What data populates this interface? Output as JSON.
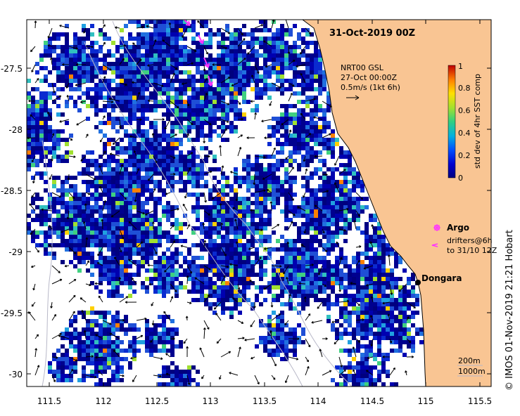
{
  "map": {
    "title": "31-Oct-2019 00Z",
    "credit": "© IMOS 01-Nov-2019 21:21 Hobart",
    "lon_ticks": [
      "111.5",
      "112",
      "112.5",
      "113",
      "113.5",
      "114",
      "114.5",
      "115",
      "115.5"
    ],
    "lat_ticks": [
      "-27.5",
      "-28",
      "-28.5",
      "-29",
      "-29.5",
      "-30"
    ],
    "current_legend": {
      "line1": "NRT00 GSL",
      "line2": "27-Oct 00:00Z",
      "line3": "0.5m/s (1kt 6h)"
    },
    "colorbar": {
      "label": "std dev of 4hr SST comp",
      "ticks": [
        "0",
        "0.2",
        "0.4",
        "0.6",
        "0.8",
        "1"
      ]
    },
    "argo_legend": {
      "label": "Argo",
      "drifter_line1": "drifters@6h",
      "drifter_line2": "to 31/10 12Z"
    },
    "place_label": "Dongara",
    "depth_labels": [
      "200m",
      "1000m"
    ],
    "colors": {
      "land": "#f9c593",
      "argo": "#ff33ff",
      "ocean_pixel_dark": "#00008f",
      "ocean_pixel_blue": "#1f4fd6"
    }
  }
}
